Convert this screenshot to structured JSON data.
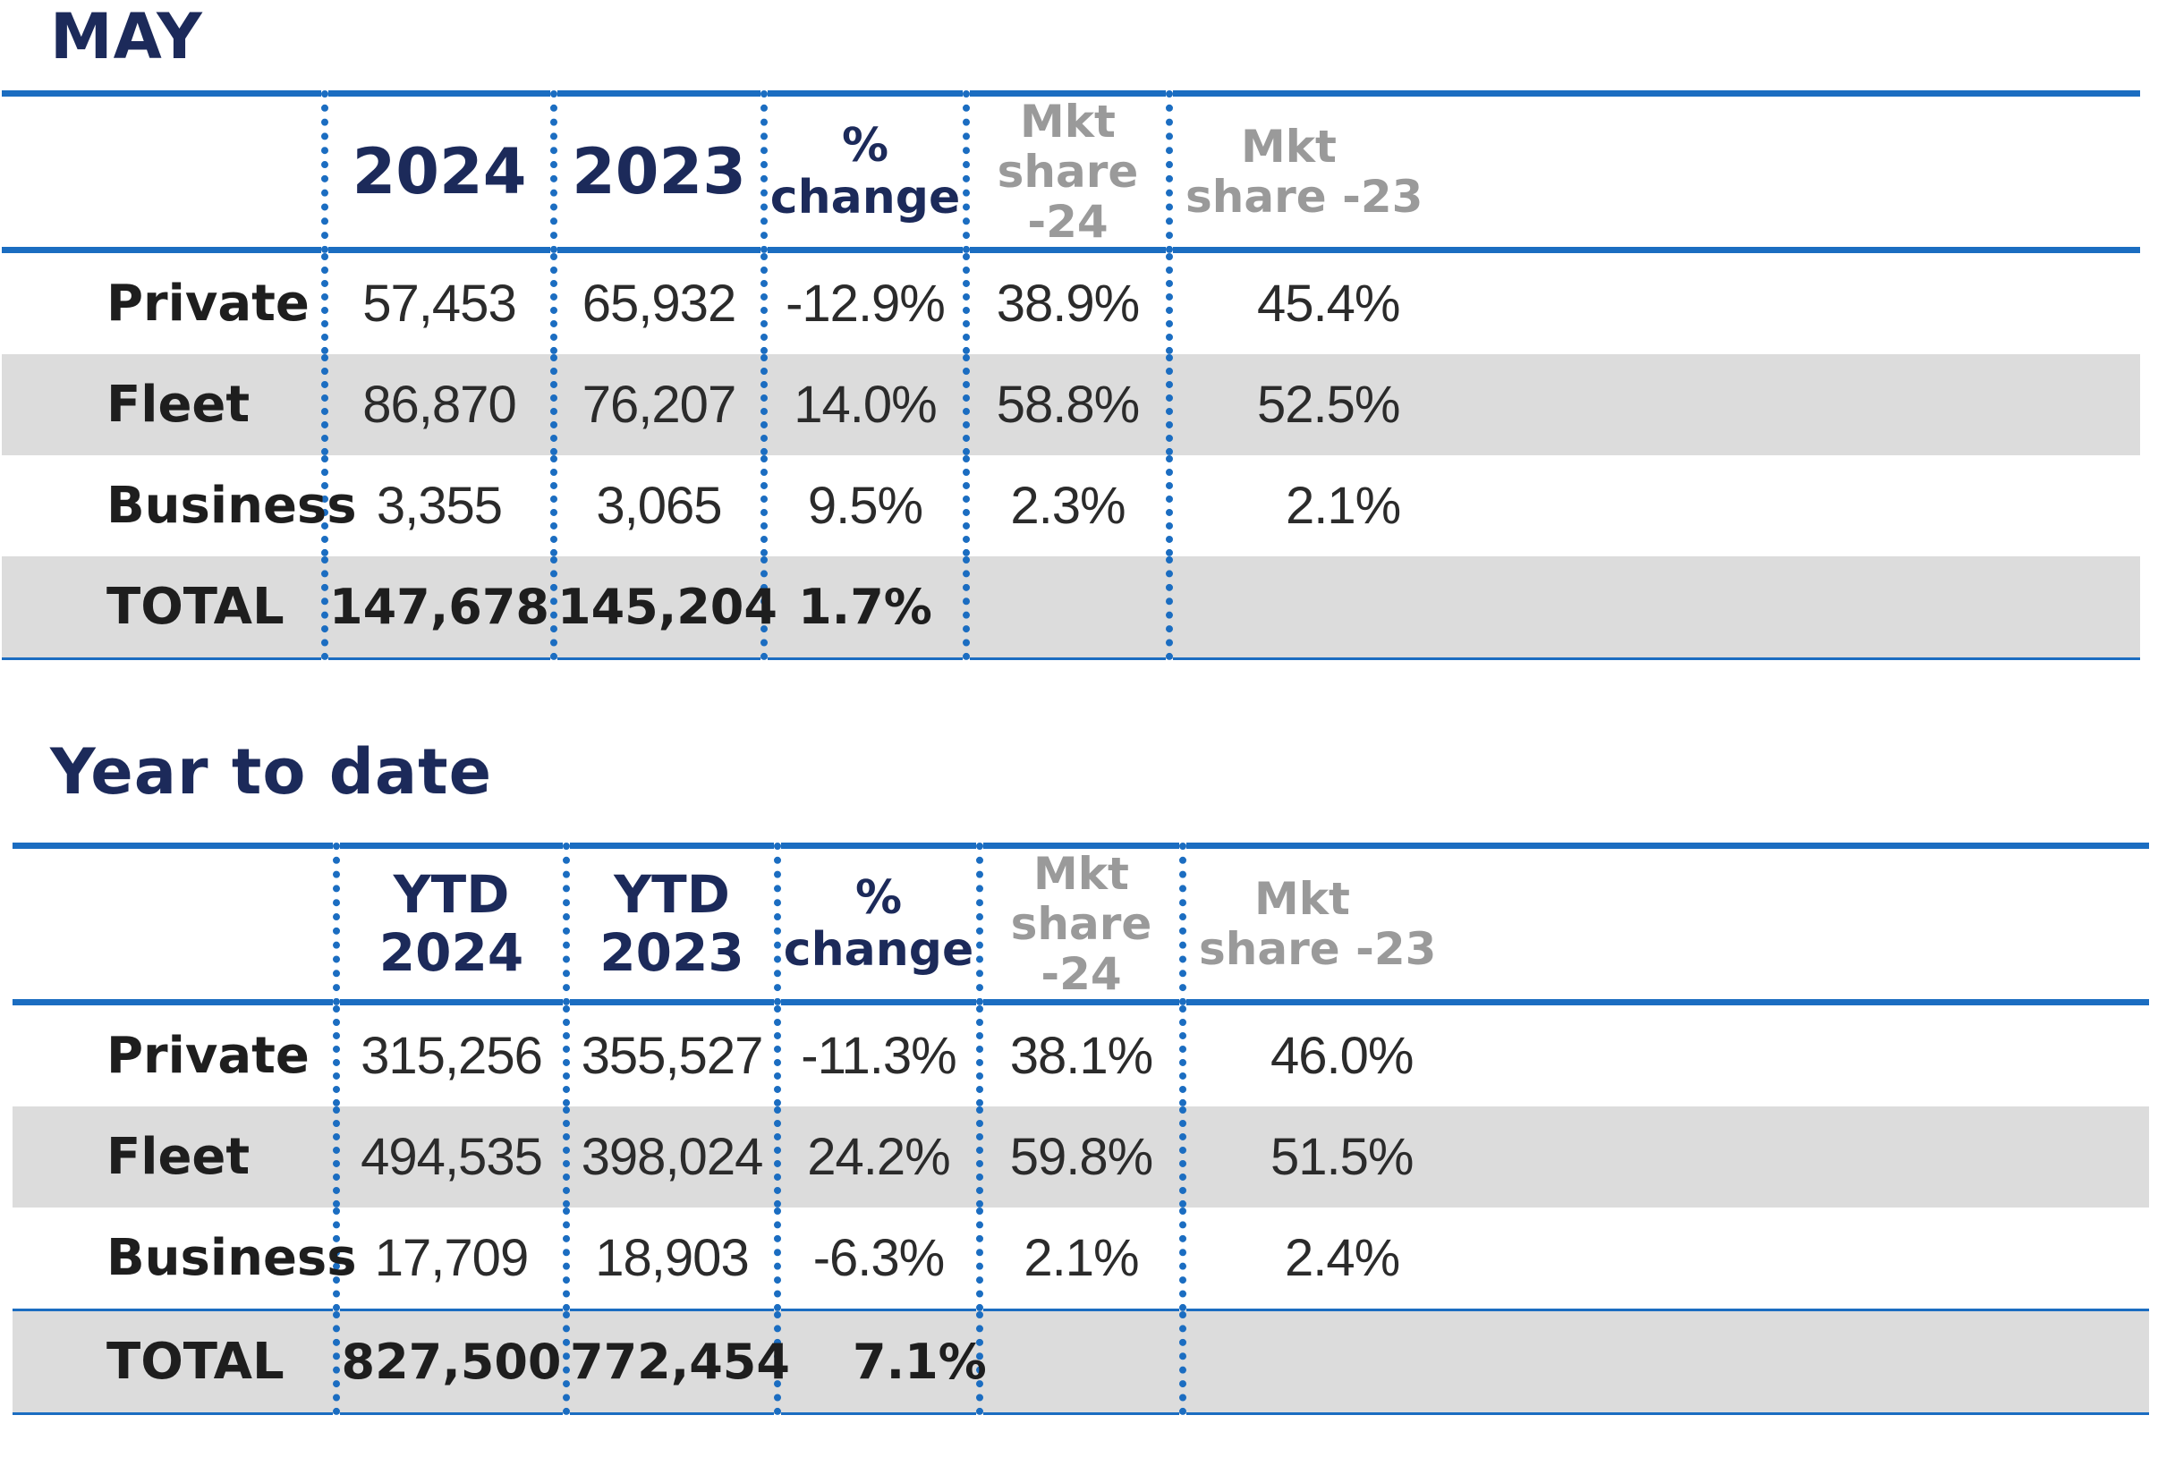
{
  "may": {
    "title": "MAY",
    "headers": [
      "2024",
      "2023",
      "%",
      "change",
      "Mkt",
      "share -24",
      "Mkt",
      "share -23"
    ],
    "rows": [
      {
        "label": "Private",
        "y2024": "57,453",
        "y2023": "65,932",
        "change": "-12.9%",
        "share24": "38.9%",
        "share23": "45.4%"
      },
      {
        "label": "Fleet",
        "y2024": "86,870",
        "y2023": "76,207",
        "change": "14.0%",
        "share24": "58.8%",
        "share23": "52.5%"
      },
      {
        "label": "Business",
        "y2024": "3,355",
        "y2023": "3,065",
        "change": "9.5%",
        "share24": "2.3%",
        "share23": "2.1%"
      },
      {
        "label": "TOTAL",
        "y2024": "147,678",
        "y2023": "145,204",
        "change": "1.7%",
        "share24": "",
        "share23": ""
      }
    ]
  },
  "ytd": {
    "title": "Year to date",
    "headers": [
      "YTD 2024",
      "YTD 2023",
      "%",
      "change",
      "Mkt",
      "share -24",
      "Mkt",
      "share -23"
    ],
    "rows": [
      {
        "label": "Private",
        "y2024": "315,256",
        "y2023": "355,527",
        "change": "-11.3%",
        "share24": "38.1%",
        "share23": "46.0%"
      },
      {
        "label": "Fleet",
        "y2024": "494,535",
        "y2023": "398,024",
        "change": "24.2%",
        "share24": "59.8%",
        "share23": "51.5%"
      },
      {
        "label": "Business",
        "y2024": "17,709",
        "y2023": "18,903",
        "change": "-6.3%",
        "share24": "2.1%",
        "share23": "2.4%"
      },
      {
        "label": "TOTAL",
        "y2024": "827,500",
        "y2023": "772,454",
        "change": "7.1%",
        "share24": "",
        "share23": ""
      }
    ]
  },
  "colors": {
    "title": "#1c2a5a",
    "rule_blue": "#1b6dc1",
    "shaded_row": "#dcdcdc",
    "mkt_header_gray": "#9a9a9a"
  }
}
